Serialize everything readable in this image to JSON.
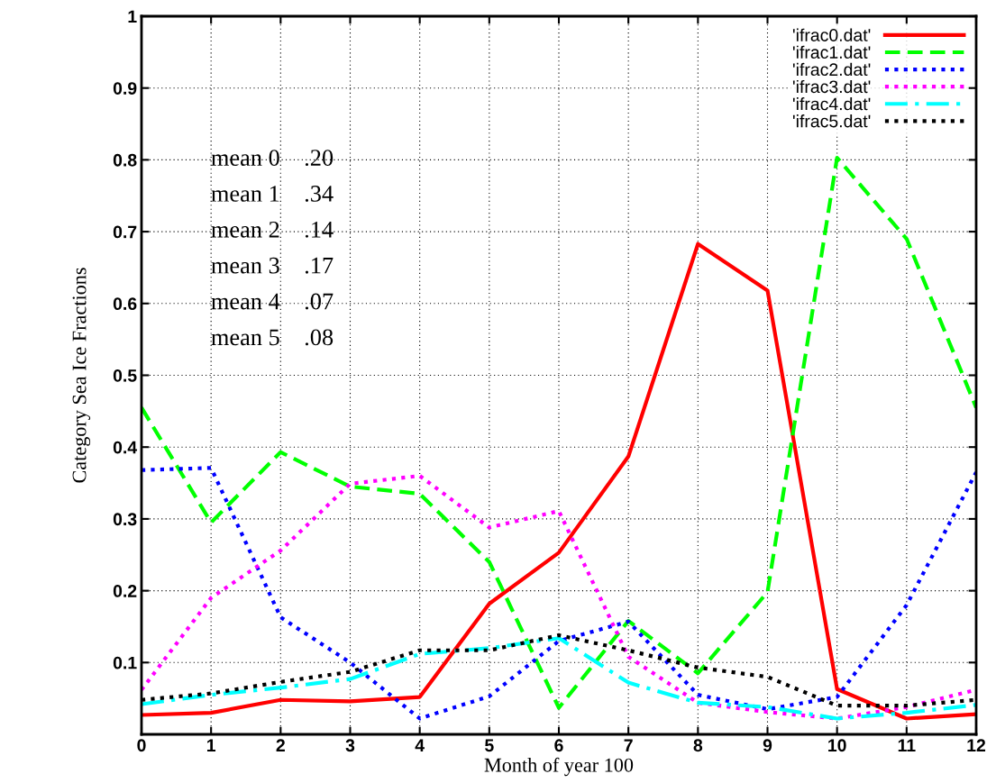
{
  "chart_data": {
    "type": "line",
    "xlabel": "Month of year 100",
    "ylabel": "Category Sea Ice Fractions",
    "x": [
      0,
      1,
      2,
      3,
      4,
      5,
      6,
      7,
      8,
      9,
      10,
      11,
      12
    ],
    "xlim": [
      0,
      12
    ],
    "xticks": [
      0,
      1,
      2,
      3,
      4,
      5,
      6,
      7,
      8,
      9,
      10,
      11,
      12
    ],
    "ylim": [
      0,
      1
    ],
    "yticks": [
      0.1,
      0.2,
      0.3,
      0.4,
      0.5,
      0.6,
      0.7,
      0.8,
      0.9,
      1
    ],
    "grid": true,
    "legend": "top right",
    "marker": "none",
    "annotations": [
      "mean 0    .20",
      "mean 1    .34",
      "mean 2    .14",
      "mean 3    .17",
      "mean 4    .07",
      "mean 5    .08"
    ],
    "series": [
      {
        "name": "'ifrac0.dat'",
        "color": "#ff0000",
        "line_style": "solid",
        "values": [
          0.027,
          0.03,
          0.048,
          0.046,
          0.052,
          0.182,
          0.253,
          0.387,
          0.683,
          0.618,
          0.063,
          0.022,
          0.028
        ]
      },
      {
        "name": "'ifrac1.dat'",
        "color": "#00ff00",
        "line_style": "dashed",
        "values": [
          0.455,
          0.295,
          0.393,
          0.345,
          0.335,
          0.24,
          0.037,
          0.158,
          0.085,
          0.198,
          0.803,
          0.69,
          0.455
        ]
      },
      {
        "name": "'ifrac2.dat'",
        "color": "#0000ff",
        "line_style": "dotted",
        "values": [
          0.368,
          0.371,
          0.163,
          0.1,
          0.022,
          0.053,
          0.13,
          0.157,
          0.055,
          0.035,
          0.052,
          0.18,
          0.365
        ]
      },
      {
        "name": "'ifrac3.dat'",
        "color": "#ff00ff",
        "line_style": "dotted",
        "values": [
          0.062,
          0.19,
          0.256,
          0.349,
          0.36,
          0.288,
          0.311,
          0.108,
          0.044,
          0.031,
          0.022,
          0.038,
          0.062
        ]
      },
      {
        "name": "'ifrac4.dat'",
        "color": "#00ffff",
        "line_style": "dashdot",
        "values": [
          0.042,
          0.055,
          0.065,
          0.077,
          0.112,
          0.12,
          0.134,
          0.072,
          0.044,
          0.038,
          0.022,
          0.03,
          0.041
        ]
      },
      {
        "name": "'ifrac5.dat'",
        "color": "#000000",
        "line_style": "dotted",
        "values": [
          0.048,
          0.057,
          0.073,
          0.087,
          0.117,
          0.117,
          0.138,
          0.117,
          0.093,
          0.08,
          0.04,
          0.04,
          0.048
        ]
      }
    ]
  }
}
